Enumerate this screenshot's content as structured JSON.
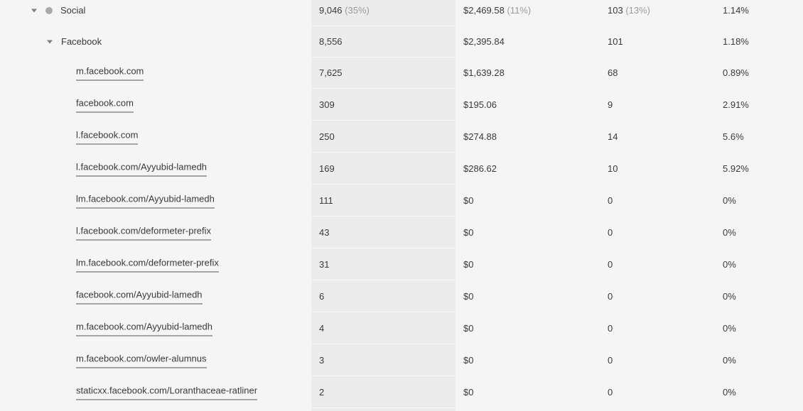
{
  "columns_visible": "sessions, revenue, conversions, conversion rate",
  "channel": {
    "label": "Social",
    "sessions": "9,046",
    "sessions_share": "(35%)",
    "revenue": "$2,469.58",
    "revenue_share": "(11%)",
    "conversions": "103",
    "conversions_share": "(13%)",
    "conversion_rate": "1.14%"
  },
  "source": {
    "label": "Facebook",
    "sessions": "8,556",
    "revenue": "$2,395.84",
    "conversions": "101",
    "conversion_rate": "1.18%"
  },
  "referrers": [
    {
      "url": "m.facebook.com",
      "sessions": "7,625",
      "revenue": "$1,639.28",
      "conversions": "68",
      "conversion_rate": "0.89%"
    },
    {
      "url": "facebook.com",
      "sessions": "309",
      "revenue": "$195.06",
      "conversions": "9",
      "conversion_rate": "2.91%"
    },
    {
      "url": "l.facebook.com",
      "sessions": "250",
      "revenue": "$274.88",
      "conversions": "14",
      "conversion_rate": "5.6%"
    },
    {
      "url": "l.facebook.com/Ayyubid-lamedh",
      "sessions": "169",
      "revenue": "$286.62",
      "conversions": "10",
      "conversion_rate": "5.92%"
    },
    {
      "url": "lm.facebook.com/Ayyubid-lamedh",
      "sessions": "111",
      "revenue": "$0",
      "conversions": "0",
      "conversion_rate": "0%"
    },
    {
      "url": "l.facebook.com/deformeter-prefix",
      "sessions": "43",
      "revenue": "$0",
      "conversions": "0",
      "conversion_rate": "0%"
    },
    {
      "url": "lm.facebook.com/deformeter-prefix",
      "sessions": "31",
      "revenue": "$0",
      "conversions": "0",
      "conversion_rate": "0%"
    },
    {
      "url": "facebook.com/Ayyubid-lamedh",
      "sessions": "6",
      "revenue": "$0",
      "conversions": "0",
      "conversion_rate": "0%"
    },
    {
      "url": "m.facebook.com/Ayyubid-lamedh",
      "sessions": "4",
      "revenue": "$0",
      "conversions": "0",
      "conversion_rate": "0%"
    },
    {
      "url": "m.facebook.com/owler-alumnus",
      "sessions": "3",
      "revenue": "$0",
      "conversions": "0",
      "conversion_rate": "0%"
    },
    {
      "url": "staticxx.facebook.com/Loranthaceae-ratliner",
      "sessions": "2",
      "revenue": "$0",
      "conversions": "0",
      "conversion_rate": "0%"
    }
  ],
  "colors": {
    "page_background": "#f5f5f5",
    "sessions_column_background": "#ececec",
    "text": "#3a3a3a",
    "muted_text": "#9b9b9b",
    "channel_dot": "#a9a9a9"
  },
  "icons": {
    "expand_caret": "chevron-down-icon",
    "channel_marker": "dot-icon"
  }
}
